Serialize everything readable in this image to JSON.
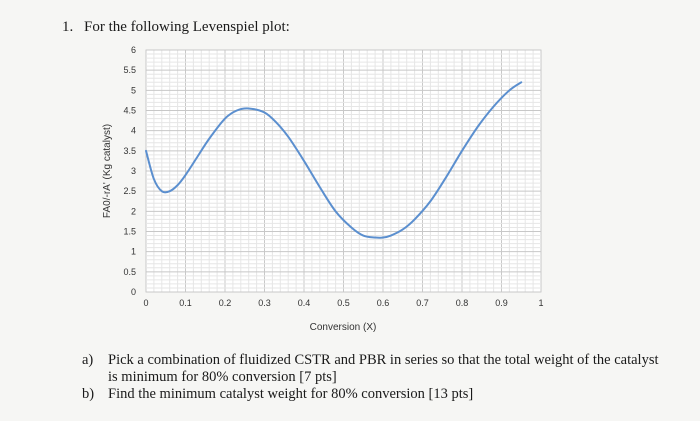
{
  "question": {
    "number": "1.",
    "title": "For the following Levenspiel plot:"
  },
  "parts": [
    {
      "label": "a)",
      "text": "Pick a combination of fluidized CSTR and PBR in series so that the total weight of the catalyst is minimum for 80% conversion [7 pts]"
    },
    {
      "label": "b)",
      "text": "Find the minimum catalyst weight for 80% conversion [13 pts]"
    }
  ],
  "chart_data": {
    "type": "line",
    "title": "",
    "xlabel": "Conversion (X)",
    "ylabel": "FA0/-rA' (Kg catalyst)",
    "xlim": [
      0,
      1
    ],
    "ylim": [
      0,
      6
    ],
    "x_ticks": [
      "0",
      "0.1",
      "0.2",
      "0.3",
      "0.4",
      "0.5",
      "0.6",
      "0.7",
      "0.8",
      "0.9",
      "1"
    ],
    "y_ticks": [
      "0",
      "0.5",
      "1",
      "1.5",
      "2",
      "2.5",
      "3",
      "3.5",
      "4",
      "4.5",
      "5",
      "5.5",
      "6"
    ],
    "grid": true,
    "legend": "none",
    "line_color": "#5b8fcf",
    "series": [
      {
        "x": [
          0,
          0.02,
          0.04,
          0.06,
          0.08,
          0.1,
          0.13,
          0.16,
          0.2,
          0.23,
          0.26,
          0.3,
          0.33,
          0.36,
          0.4,
          0.44,
          0.48,
          0.52,
          0.55,
          0.58,
          0.6,
          0.62,
          0.65,
          0.68,
          0.72,
          0.76,
          0.8,
          0.84,
          0.88,
          0.92,
          0.95
        ],
        "y": [
          3.5,
          2.8,
          2.5,
          2.5,
          2.65,
          2.9,
          3.35,
          3.8,
          4.3,
          4.5,
          4.55,
          4.45,
          4.2,
          3.85,
          3.25,
          2.6,
          2.0,
          1.6,
          1.4,
          1.35,
          1.35,
          1.4,
          1.55,
          1.8,
          2.25,
          2.85,
          3.5,
          4.1,
          4.6,
          5.0,
          5.2
        ]
      }
    ]
  }
}
